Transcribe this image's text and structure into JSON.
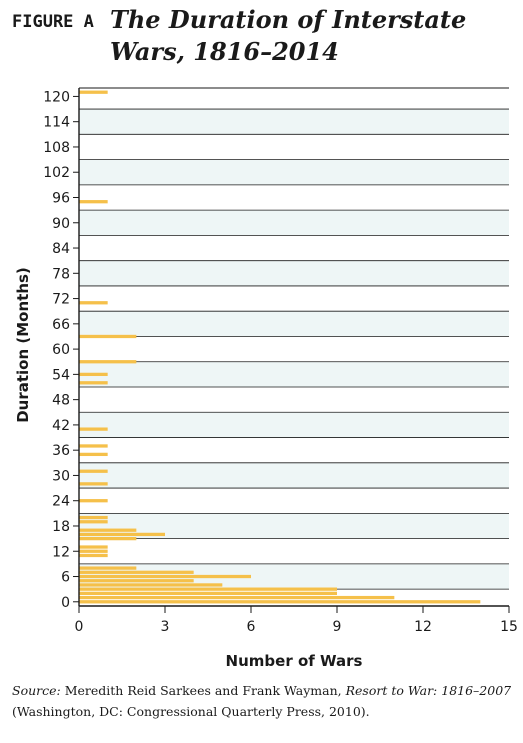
{
  "figure_label": "FIGURE A",
  "title": "The Duration of Interstate Wars, 1816–2014",
  "source": {
    "label": "Source:",
    "text_before": " Meredith Reid Sarkees and Frank Wayman, ",
    "book": "Resort to War: 1816–2007",
    "text_after": " (Washington, DC: Congressional Quarterly Press, 2010)."
  },
  "colors": {
    "bar": "#f5c04a",
    "band": "#eef6f6",
    "grid": "#1a1a1a"
  },
  "chart_data": {
    "type": "bar",
    "orientation": "horizontal",
    "title": "The Duration of Interstate Wars, 1816–2014",
    "xlabel": "Number of Wars",
    "ylabel": "Duration (Months)",
    "xlim": [
      0,
      15
    ],
    "ylim": [
      -1,
      122
    ],
    "xticks": [
      0,
      3,
      6,
      9,
      12,
      15
    ],
    "yticks": [
      0,
      6,
      12,
      18,
      24,
      30,
      36,
      42,
      48,
      54,
      60,
      66,
      72,
      78,
      84,
      90,
      96,
      102,
      108,
      114,
      120
    ],
    "durations": [
      0,
      1,
      2,
      3,
      4,
      5,
      6,
      7,
      8,
      11,
      12,
      13,
      15,
      16,
      17,
      19,
      20,
      24,
      28,
      31,
      35,
      37,
      41,
      52,
      54,
      57,
      63,
      71,
      95,
      121
    ],
    "counts": [
      14,
      11,
      9,
      9,
      5,
      4,
      6,
      4,
      2,
      1,
      1,
      1,
      2,
      3,
      2,
      1,
      1,
      1,
      1,
      1,
      1,
      1,
      1,
      1,
      1,
      2,
      2,
      1,
      1,
      1
    ]
  }
}
